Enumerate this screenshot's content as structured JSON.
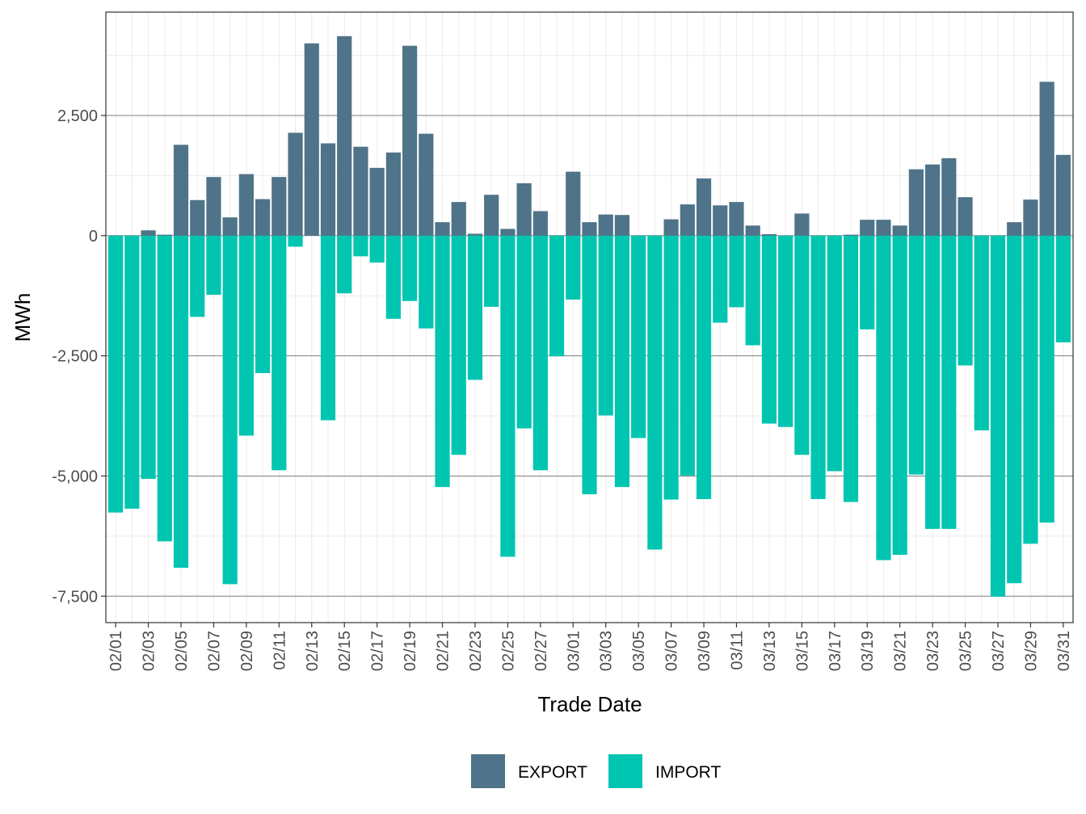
{
  "chart_data": {
    "type": "bar",
    "stacked": true,
    "title": "",
    "xlabel": "Trade Date",
    "ylabel": "MWh",
    "ylim": [
      -8050,
      4650
    ],
    "y_ticks": [
      -7500,
      -5000,
      -2500,
      0,
      2500
    ],
    "y_tick_labels": [
      "-7,500",
      "-5,000",
      "-2,500",
      "0",
      "2,500"
    ],
    "legend_position": "bottom",
    "categories": [
      "02/01",
      "02/02",
      "02/03",
      "02/04",
      "02/05",
      "02/06",
      "02/07",
      "02/08",
      "02/09",
      "02/10",
      "02/11",
      "02/12",
      "02/13",
      "02/14",
      "02/15",
      "02/16",
      "02/17",
      "02/18",
      "02/19",
      "02/20",
      "02/21",
      "02/22",
      "02/23",
      "02/24",
      "02/25",
      "02/26",
      "02/27",
      "02/28",
      "03/01",
      "03/02",
      "03/03",
      "03/04",
      "03/05",
      "03/06",
      "03/07",
      "03/08",
      "03/09",
      "03/10",
      "03/11",
      "03/12",
      "03/13",
      "03/14",
      "03/15",
      "03/16",
      "03/17",
      "03/18",
      "03/19",
      "03/20",
      "03/21",
      "03/22",
      "03/23",
      "03/24",
      "03/25",
      "03/26",
      "03/27",
      "03/28",
      "03/29",
      "03/30",
      "03/31"
    ],
    "x_tick_labels": [
      "02/01",
      "02/03",
      "02/05",
      "02/07",
      "02/09",
      "02/11",
      "02/13",
      "02/15",
      "02/17",
      "02/19",
      "02/21",
      "02/23",
      "02/25",
      "02/27",
      "03/01",
      "03/03",
      "03/05",
      "03/07",
      "03/09",
      "03/11",
      "03/13",
      "03/15",
      "03/17",
      "03/19",
      "03/21",
      "03/23",
      "03/25",
      "03/27",
      "03/29",
      "03/31"
    ],
    "series": [
      {
        "name": "EXPORT",
        "color": "#4f7388",
        "values": [
          0,
          0,
          110,
          20,
          1890,
          740,
          1220,
          380,
          1280,
          760,
          1220,
          2140,
          4000,
          1920,
          4150,
          1850,
          1410,
          1730,
          3950,
          2120,
          280,
          700,
          40,
          850,
          140,
          1090,
          510,
          0,
          1330,
          280,
          440,
          430,
          0,
          0,
          340,
          650,
          1190,
          630,
          700,
          210,
          30,
          0,
          460,
          0,
          0,
          20,
          330,
          330,
          210,
          1380,
          1480,
          1610,
          800,
          0,
          0,
          280,
          750,
          3200,
          1680
        ]
      },
      {
        "name": "IMPORT",
        "color": "#00c5b0",
        "values": [
          -5760,
          -5680,
          -5060,
          -6360,
          -6910,
          -1690,
          -1230,
          -7250,
          -4160,
          -2860,
          -4880,
          -230,
          0,
          -3840,
          -1200,
          -430,
          -560,
          -1730,
          -1360,
          -1930,
          -5230,
          -4560,
          -3000,
          -1480,
          -6680,
          -4010,
          -4880,
          -2510,
          -1330,
          -5380,
          -3740,
          -5230,
          -4210,
          -6530,
          -5490,
          -4990,
          -5480,
          -1810,
          -1490,
          -2280,
          -3910,
          -3980,
          -4560,
          -5480,
          -4900,
          -5540,
          -1950,
          -6750,
          -6640,
          -4970,
          -6100,
          -6100,
          -2700,
          -4050,
          -7510,
          -7230,
          -6410,
          -5970,
          -2220
        ]
      }
    ]
  }
}
